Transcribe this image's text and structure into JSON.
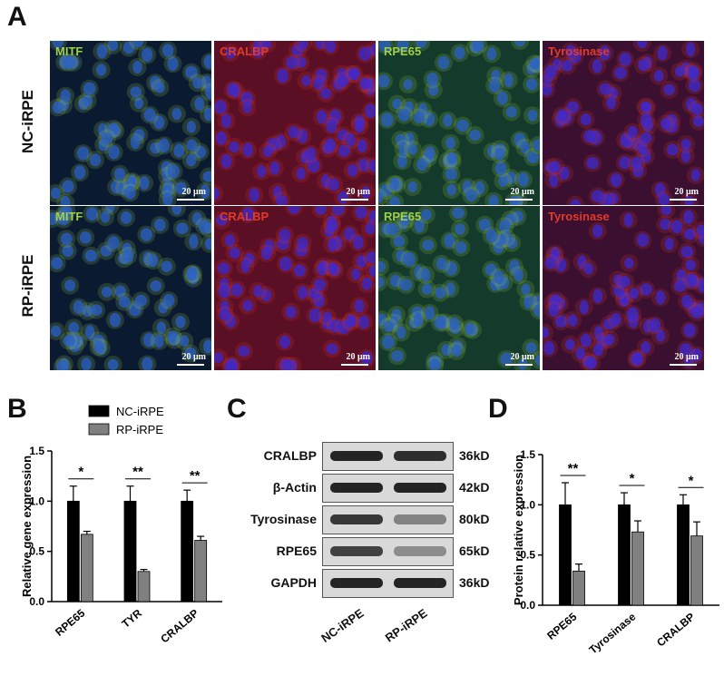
{
  "panels": {
    "a": "A",
    "b": "B",
    "c": "C",
    "d": "D"
  },
  "panel_a": {
    "rows": [
      "NC-iRPE",
      "RP-iRPE"
    ],
    "columns": [
      {
        "stain": "MITF",
        "stain_color": "#9ed04a",
        "nuclei": "#2a5fc8",
        "fill": "#0a1a30"
      },
      {
        "stain": "CRALBP",
        "stain_color": "#e23a2a",
        "nuclei": "#3a2ad0",
        "fill": "#5a0f25"
      },
      {
        "stain": "RPE65",
        "stain_color": "#9ed04a",
        "nuclei": "#2a5fc8",
        "fill": "#133a2a"
      },
      {
        "stain": "Tyrosinase",
        "stain_color": "#e23a2a",
        "nuclei": "#3a2ad0",
        "fill": "#3a0f30"
      }
    ],
    "scale": "20 μm"
  },
  "chart_data": [
    {
      "type": "bar",
      "panel": "B",
      "ylabel": "Relative gene expression",
      "categories": [
        "RPE65",
        "TYR",
        "CRALBP"
      ],
      "series": [
        {
          "name": "NC-iRPE",
          "color": "#000000",
          "values": [
            1.0,
            1.0,
            1.0
          ],
          "err": [
            0.15,
            0.15,
            0.11
          ]
        },
        {
          "name": "RP-iRPE",
          "color": "#808080",
          "values": [
            0.67,
            0.3,
            0.61
          ],
          "err": [
            0.03,
            0.02,
            0.04
          ]
        }
      ],
      "significance": [
        "*",
        "**",
        "**"
      ],
      "ylim": [
        0.0,
        1.5
      ],
      "yticks": [
        "0.0",
        "0.5",
        "1.0",
        "1.5"
      ]
    },
    {
      "type": "bar",
      "panel": "D",
      "ylabel": "Protein relative expression",
      "categories": [
        "RPE65",
        "Tyrosinase",
        "CRALBP"
      ],
      "series": [
        {
          "name": "NC-iRPE",
          "color": "#000000",
          "values": [
            1.0,
            1.0,
            1.0
          ],
          "err": [
            0.22,
            0.12,
            0.1
          ]
        },
        {
          "name": "RP-iRPE",
          "color": "#808080",
          "values": [
            0.34,
            0.73,
            0.69
          ],
          "err": [
            0.07,
            0.11,
            0.14
          ]
        }
      ],
      "significance": [
        "**",
        "*",
        "*"
      ],
      "ylim": [
        0.0,
        1.5
      ],
      "yticks": [
        "0.0",
        "0.5",
        "1.0",
        "1.5"
      ]
    }
  ],
  "panel_c": {
    "proteins": [
      "CRALBP",
      "β-Actin",
      "Tyrosinase",
      "RPE65",
      "GAPDH"
    ],
    "sizes": [
      "36kD",
      "42kD",
      "80kD",
      "65kD",
      "36kD"
    ],
    "lanes": [
      "NC-iRPE",
      "RP-iRPE"
    ],
    "band_intensity": [
      [
        0.95,
        0.9
      ],
      [
        0.95,
        0.95
      ],
      [
        0.85,
        0.45
      ],
      [
        0.8,
        0.4
      ],
      [
        0.95,
        0.95
      ]
    ]
  }
}
